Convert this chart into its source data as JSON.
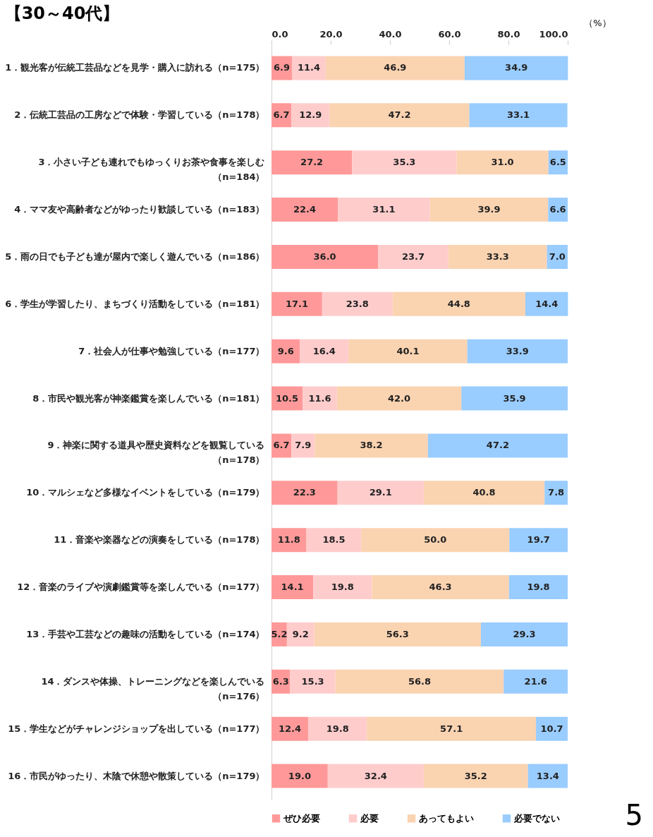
{
  "chart_data": {
    "type": "bar",
    "orientation": "horizontal",
    "stacked": true,
    "title": "【30～40代】",
    "xlabel": "（%）",
    "categories": [
      "1．観光客が伝統工芸品などを見学・購入に訪れる（n=175）",
      "2．伝統工芸品の工房などで体験・学習している（n=178）",
      "3．小さい子ども連れでもゆっくりお茶や食事を楽しむ（n=184）",
      "4．ママ友や高齢者などがゆったり歓談している（n=183）",
      "5．雨の日でも子ども達が屋内で楽しく遊んでいる（n=186）",
      "6．学生が学習したり、まちづくり活動をしている（n=181）",
      "7．社会人が仕事や勉強している（n=177）",
      "8．市民や観光客が神楽鑑賞を楽しんでいる（n=181）",
      "9．神楽に関する道具や歴史資料などを観覧している（n=178）",
      "10．マルシェなど多様なイベントをしている（n=179）",
      "11．音楽や楽器などの演奏をしている（n=178）",
      "12．音楽のライブや演劇鑑賞等を楽しんでいる（n=177）",
      "13．手芸や工芸などの趣味の活動をしている（n=174）",
      "14．ダンスや体操、トレーニングなどを楽しんでいる（n=176）",
      "15．学生などがチャレンジショップを出している（n=177）",
      "16．市民がゆったり、木陰で休憩や散策している（n=179）"
    ],
    "series": [
      {
        "name": "ぜひ必要",
        "color": "#ff9999",
        "values": [
          6.9,
          6.7,
          27.2,
          22.4,
          36.0,
          17.1,
          9.6,
          10.5,
          6.7,
          22.3,
          11.8,
          14.1,
          5.2,
          6.3,
          12.4,
          19.0
        ],
        "value_labels": [
          "6.9",
          "6.7",
          "27.2",
          "22.4",
          "36.0",
          "17.1",
          "9.6",
          "10.5",
          "6.7",
          "22.3",
          "11.8",
          "14.1",
          "5.2",
          "6.3",
          "12.4",
          "19.0"
        ]
      },
      {
        "name": "必要",
        "color": "#ffcccc",
        "values": [
          11.4,
          12.9,
          35.3,
          31.1,
          23.7,
          23.8,
          16.4,
          11.6,
          7.9,
          29.1,
          18.5,
          19.8,
          9.2,
          15.3,
          19.8,
          32.4
        ],
        "value_labels": [
          "11.4",
          "12.9",
          "35.3",
          "31.1",
          "23.7",
          "23.8",
          "16.4",
          "11.6",
          "7.9",
          "29.1",
          "18.5",
          "19.8",
          "9.2",
          "15.3",
          "19.8",
          "32.4"
        ]
      },
      {
        "name": "あってもよい",
        "color": "#fad3b1",
        "values": [
          46.9,
          47.2,
          31.0,
          39.9,
          33.3,
          44.8,
          40.1,
          42.0,
          38.2,
          40.8,
          50.0,
          46.3,
          56.3,
          56.8,
          57.1,
          35.2
        ],
        "value_labels": [
          "46.9",
          "47.2",
          "31.0",
          "39.9",
          "33.3",
          "44.8",
          "40.1",
          "42.0",
          "38.2",
          "40.8",
          "50.0",
          "46.3",
          "56.3",
          "56.8",
          "57.1",
          "35.2"
        ]
      },
      {
        "name": "必要でない",
        "color": "#99ccff",
        "values": [
          34.9,
          33.1,
          6.5,
          6.6,
          7.0,
          14.4,
          33.9,
          35.9,
          47.2,
          7.8,
          19.7,
          19.8,
          29.3,
          21.6,
          10.7,
          13.4
        ],
        "value_labels": [
          "34.9",
          "33.1",
          "6.5",
          "6.6",
          "7.0",
          "14.4",
          "33.9",
          "35.9",
          "47.2",
          "7.8",
          "19.7",
          "19.8",
          "29.3",
          "21.6",
          "10.7",
          "13.4"
        ]
      }
    ],
    "xlim": [
      0,
      100
    ],
    "xticks": [
      {
        "value": 0,
        "label": "0.0"
      },
      {
        "value": 20,
        "label": "20.0"
      },
      {
        "value": 40,
        "label": "40.0"
      },
      {
        "value": 60,
        "label": "60.0"
      },
      {
        "value": 80,
        "label": "80.0"
      },
      {
        "value": 100,
        "label": "100.0"
      }
    ],
    "legend": "bottom",
    "annotations": [
      "5"
    ]
  }
}
